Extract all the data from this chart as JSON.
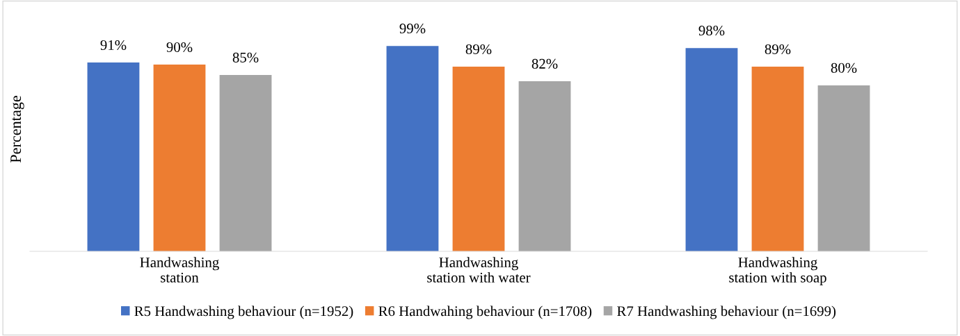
{
  "chart_data": {
    "type": "bar",
    "ylabel": "Percentage",
    "categories": [
      "Handwashing\nstation",
      "Handwashing\nstation with water",
      "Handwashing\nstation with soap"
    ],
    "series": [
      {
        "name": "R5 Handwashing behaviour (n=1952)",
        "color": "#4472c4",
        "values": [
          91,
          99,
          98
        ],
        "value_labels": [
          "91%",
          "99%",
          "98%"
        ]
      },
      {
        "name": "R6 Handwahing behaviour (n=1708)",
        "color": "#ed7d31",
        "values": [
          90,
          89,
          89
        ],
        "value_labels": [
          "90%",
          "89%",
          "89%"
        ]
      },
      {
        "name": "R7 Handwashing behaviour (n=1699)",
        "color": "#a5a5a5",
        "values": [
          85,
          82,
          80
        ],
        "value_labels": [
          "85%",
          "82%",
          "80%"
        ]
      }
    ],
    "tick_labels": "x",
    "grid": false,
    "legend": "bottom"
  }
}
